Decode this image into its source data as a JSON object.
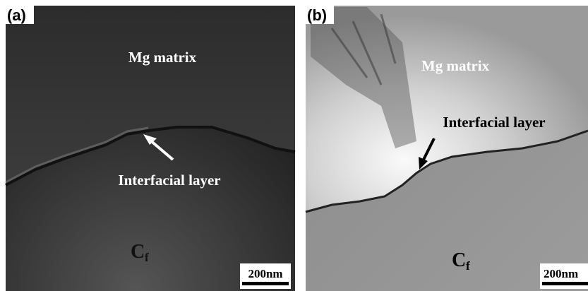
{
  "panels": [
    {
      "label": "(a)",
      "matrix": "Mg matrix",
      "layer": "Interfacial layer",
      "fiber": "C",
      "fiber_sub": "f",
      "scale": "200nm"
    },
    {
      "label": "(b)",
      "matrix": "Mg matrix",
      "layer": "Interfacial layer",
      "fiber": "C",
      "fiber_sub": "f",
      "scale": "200nm"
    }
  ]
}
